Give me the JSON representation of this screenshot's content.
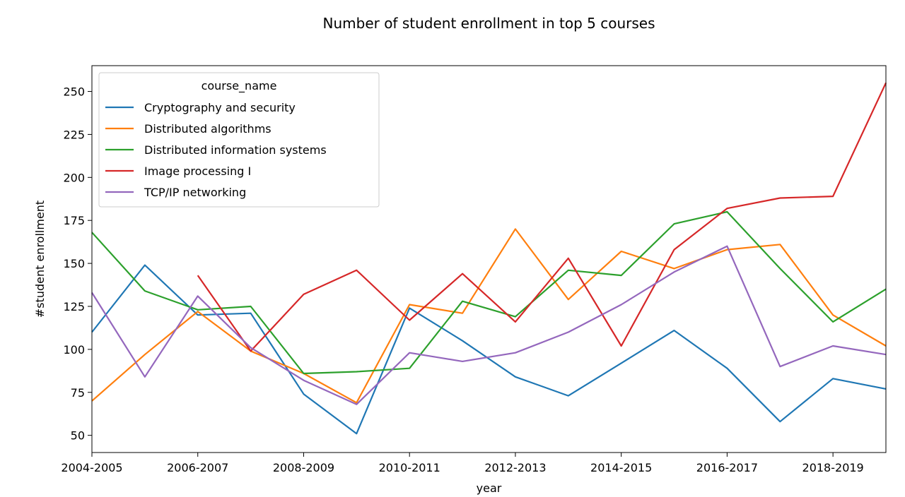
{
  "chart_data": {
    "type": "line",
    "title": "Number of student enrollment in top 5 courses",
    "xlabel": "year",
    "ylabel": "#student enrollment",
    "x": [
      "2004-2005",
      "2005-2006",
      "2006-2007",
      "2007-2008",
      "2008-2009",
      "2009-2010",
      "2010-2011",
      "2011-2012",
      "2012-2013",
      "2013-2014",
      "2014-2015",
      "2015-2016",
      "2016-2017",
      "2017-2018",
      "2018-2019",
      "2019-2020"
    ],
    "x_tick_labels": [
      "2004-2005",
      "2006-2007",
      "2008-2009",
      "2010-2011",
      "2012-2013",
      "2014-2015",
      "2016-2017",
      "2018-2019"
    ],
    "y_ticks": [
      50,
      75,
      100,
      125,
      150,
      175,
      200,
      225,
      250
    ],
    "ylim": [
      40,
      265
    ],
    "legend": {
      "title": "course_name",
      "placement": "upper-left"
    },
    "series": [
      {
        "name": "Cryptography and security",
        "color": "#1f77b4",
        "values": [
          110,
          149,
          120,
          121,
          74,
          51,
          124,
          105,
          84,
          73,
          92,
          111,
          89,
          58,
          83,
          77
        ]
      },
      {
        "name": "Distributed algorithms",
        "color": "#ff7f0e",
        "values": [
          70,
          97,
          122,
          99,
          86,
          69,
          126,
          121,
          170,
          129,
          157,
          147,
          158,
          161,
          120,
          102
        ]
      },
      {
        "name": "Distributed information systems",
        "color": "#2ca02c",
        "values": [
          168,
          134,
          123,
          125,
          86,
          87,
          89,
          128,
          119,
          146,
          143,
          173,
          180,
          147,
          116,
          135
        ]
      },
      {
        "name": "Image processing I",
        "color": "#d62728",
        "values": [
          null,
          null,
          143,
          99,
          132,
          146,
          117,
          144,
          116,
          153,
          102,
          158,
          182,
          188,
          189,
          255
        ]
      },
      {
        "name": "TCP/IP networking",
        "color": "#9467bd",
        "values": [
          133,
          84,
          131,
          101,
          82,
          68,
          98,
          93,
          98,
          110,
          126,
          145,
          160,
          90,
          102,
          97
        ]
      }
    ]
  }
}
